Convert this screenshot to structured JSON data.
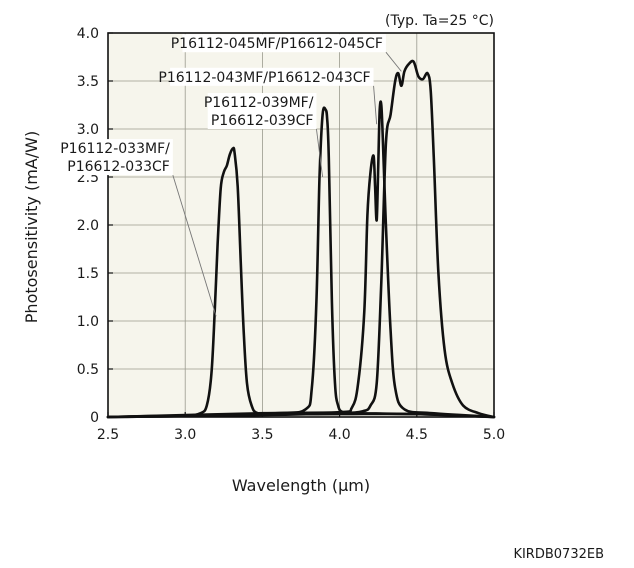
{
  "chart_data": {
    "type": "line",
    "title": "",
    "condition_note": "(Typ. Ta=25 °C)",
    "xlabel": "Wavelength (μm)",
    "ylabel": "Photosensitivity (mA/W)",
    "xlim": [
      2.5,
      5.0
    ],
    "ylim": [
      0,
      4.0
    ],
    "x_ticks": [
      2.5,
      3.0,
      3.5,
      4.0,
      4.5,
      5.0
    ],
    "x_tick_labels": [
      "2.5",
      "3.0",
      "3.5",
      "4.0",
      "4.5",
      "5.0"
    ],
    "y_ticks": [
      0,
      0.5,
      1.0,
      1.5,
      2.0,
      2.5,
      3.0,
      3.5,
      4.0
    ],
    "y_tick_labels": [
      "0",
      "0.5",
      "1.0",
      "1.5",
      "2.0",
      "2.5",
      "3.0",
      "3.5",
      "4.0"
    ],
    "grid": true,
    "plot_background": "#f6f5ec",
    "line_color": "#111111",
    "document_code": "KIRDB0732EB",
    "series": [
      {
        "label_lines": [
          "P16112-033MF/",
          "P16612-033CF"
        ],
        "label_anchor": [
          2.92,
          2.52
        ],
        "label_target": [
          3.2,
          1.05
        ],
        "x": [
          2.5,
          2.8,
          3.0,
          3.1,
          3.14,
          3.17,
          3.19,
          3.21,
          3.23,
          3.25,
          3.27,
          3.29,
          3.31,
          3.32,
          3.34,
          3.36,
          3.38,
          3.4,
          3.43,
          3.47,
          3.6,
          4.0,
          4.5,
          5.0
        ],
        "y": [
          0.0,
          0.01,
          0.01,
          0.04,
          0.12,
          0.45,
          1.05,
          1.8,
          2.38,
          2.55,
          2.62,
          2.74,
          2.8,
          2.75,
          2.4,
          1.6,
          0.85,
          0.35,
          0.12,
          0.04,
          0.03,
          0.03,
          0.03,
          0.0
        ]
      },
      {
        "label_lines": [
          "P16112-039MF/",
          "P16612-039CF"
        ],
        "label_anchor": [
          3.85,
          3.0
        ],
        "label_target": [
          3.89,
          2.5
        ],
        "x": [
          2.5,
          3.0,
          3.6,
          3.78,
          3.82,
          3.85,
          3.87,
          3.89,
          3.91,
          3.92,
          3.93,
          3.95,
          3.97,
          3.99,
          4.02,
          4.1,
          4.5,
          5.0
        ],
        "y": [
          0.0,
          0.01,
          0.04,
          0.08,
          0.3,
          1.2,
          2.5,
          3.15,
          3.2,
          3.1,
          2.7,
          1.2,
          0.35,
          0.12,
          0.05,
          0.04,
          0.03,
          0.0
        ]
      },
      {
        "label_lines": [
          "P16112-043MF/P16612-043CF"
        ],
        "label_anchor": [
          4.22,
          3.45
        ],
        "label_target": [
          4.24,
          3.05
        ],
        "x": [
          2.5,
          3.5,
          4.0,
          4.08,
          4.12,
          4.16,
          4.18,
          4.2,
          4.22,
          4.23,
          4.24,
          4.25,
          4.26,
          4.27,
          4.28,
          4.3,
          4.33,
          4.36,
          4.42,
          4.6,
          5.0
        ],
        "y": [
          0.0,
          0.04,
          0.05,
          0.1,
          0.35,
          1.1,
          2.1,
          2.55,
          2.72,
          2.4,
          2.05,
          2.6,
          3.2,
          3.25,
          2.9,
          2.0,
          0.9,
          0.3,
          0.08,
          0.04,
          0.0
        ]
      },
      {
        "label_lines": [
          "P16112-045MF/P16612-045CF"
        ],
        "label_anchor": [
          4.3,
          3.8
        ],
        "label_target": [
          4.4,
          3.6
        ],
        "x": [
          2.5,
          3.5,
          4.0,
          4.15,
          4.2,
          4.24,
          4.27,
          4.3,
          4.33,
          4.36,
          4.38,
          4.4,
          4.42,
          4.45,
          4.48,
          4.51,
          4.54,
          4.57,
          4.59,
          4.61,
          4.64,
          4.68,
          4.73,
          4.8,
          4.9,
          5.0
        ],
        "y": [
          0.0,
          0.02,
          0.04,
          0.06,
          0.12,
          0.35,
          1.4,
          2.85,
          3.15,
          3.5,
          3.58,
          3.45,
          3.6,
          3.68,
          3.7,
          3.55,
          3.52,
          3.58,
          3.4,
          2.7,
          1.5,
          0.7,
          0.35,
          0.12,
          0.04,
          0.0
        ]
      }
    ]
  }
}
